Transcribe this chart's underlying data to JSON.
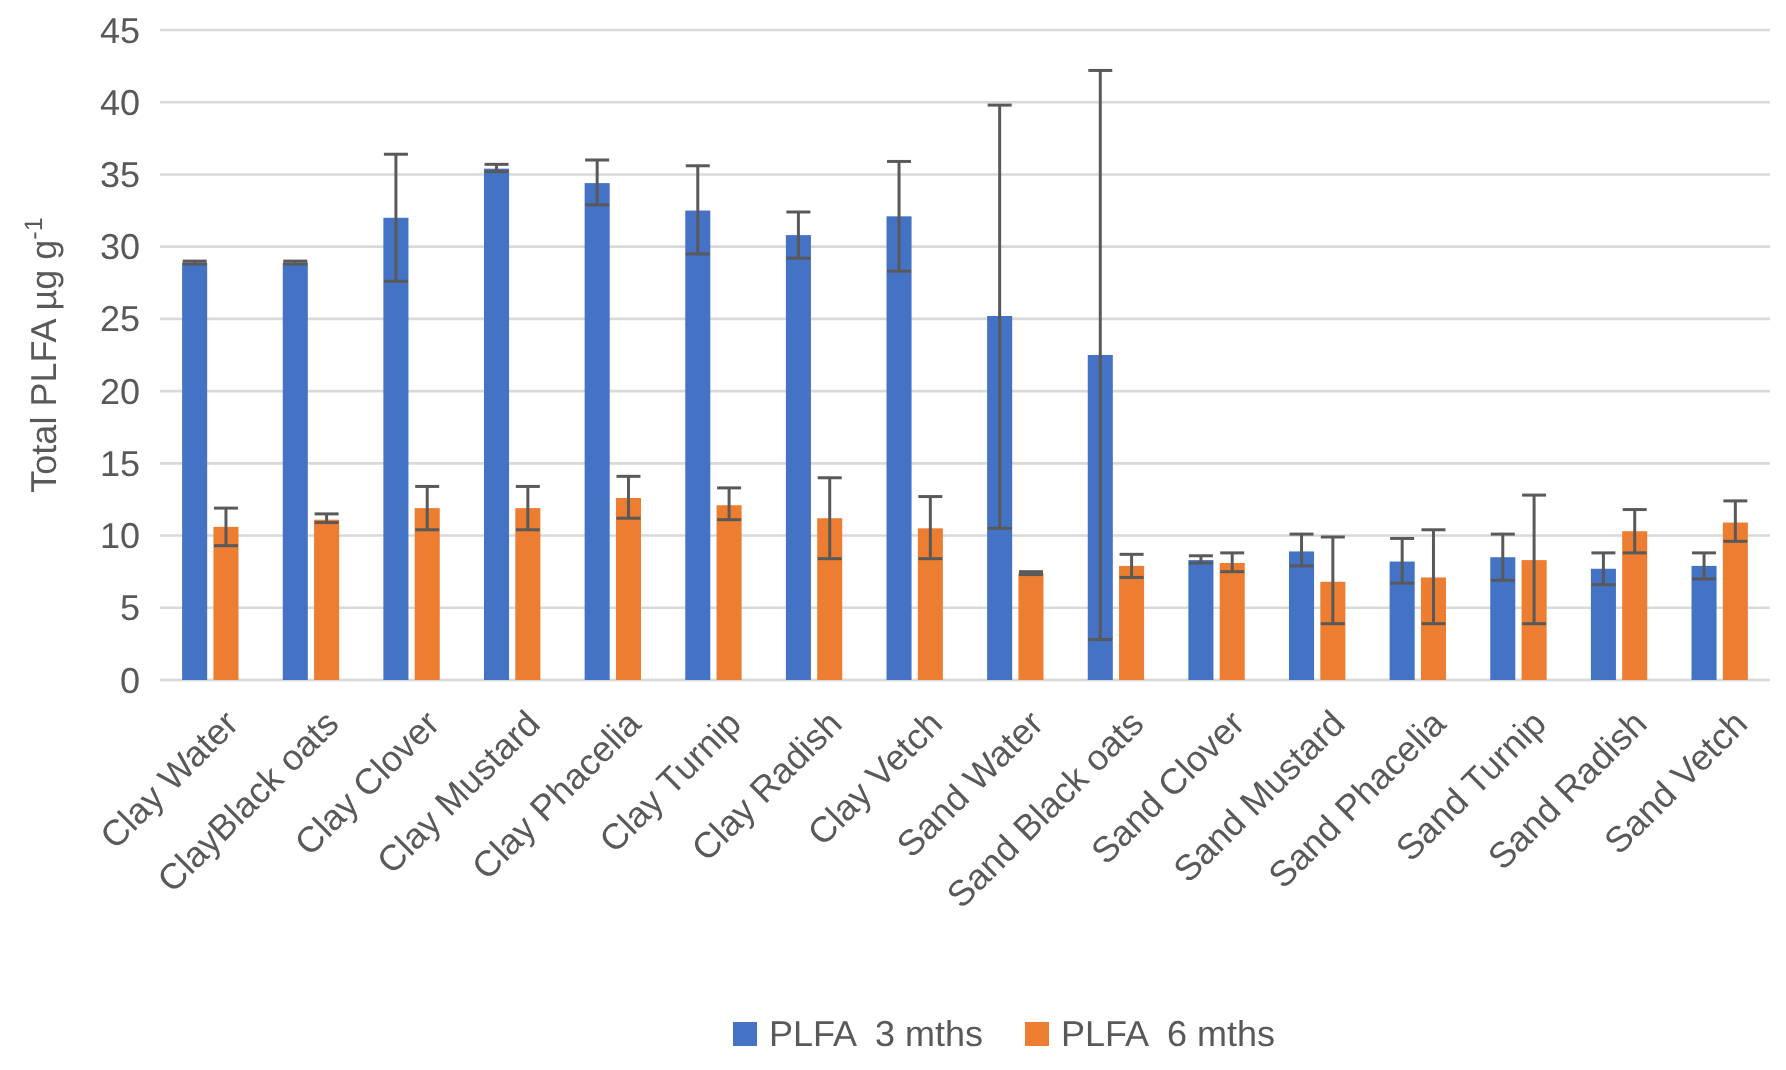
{
  "chart_data": {
    "type": "bar",
    "ylabel": "Total PLFA µg g$^{-1}$",
    "categories": [
      "Clay Water",
      "ClayBlack oats",
      "Clay Clover",
      "Clay Mustard",
      "Clay Phacelia",
      "Clay Turnip",
      "Clay Radish",
      "Clay Vetch",
      "Sand Water",
      "Sand Black oats",
      "Sand Clover",
      "Sand Mustard",
      "Sand Phacelia",
      "Sand Turnip",
      "Sand Radish",
      "Sand Vetch"
    ],
    "series": [
      {
        "name": "PLFA  3 mths",
        "color": "#4472c4",
        "values": [
          28.9,
          28.9,
          32.0,
          35.4,
          34.4,
          32.5,
          30.8,
          32.1,
          25.2,
          22.5,
          8.3,
          8.9,
          8.2,
          8.5,
          7.7,
          7.9
        ],
        "errors": [
          [
            28.8,
            29.0
          ],
          [
            28.8,
            29.0
          ],
          [
            27.6,
            36.4
          ],
          [
            35.2,
            35.7
          ],
          [
            32.9,
            36.0
          ],
          [
            29.5,
            35.6
          ],
          [
            29.2,
            32.4
          ],
          [
            28.3,
            35.9
          ],
          [
            10.5,
            39.8
          ],
          [
            2.8,
            42.2
          ],
          [
            8.1,
            8.6
          ],
          [
            7.9,
            10.1
          ],
          [
            6.7,
            9.8
          ],
          [
            6.9,
            10.1
          ],
          [
            6.6,
            8.8
          ],
          [
            7.0,
            8.8
          ]
        ]
      },
      {
        "name": "PLFA  6 mths",
        "color": "#ed7d31",
        "values": [
          10.6,
          11.1,
          11.9,
          11.9,
          12.6,
          12.1,
          11.2,
          10.5,
          7.4,
          7.9,
          8.1,
          6.8,
          7.1,
          8.3,
          10.3,
          10.9
        ],
        "errors": [
          [
            9.3,
            11.9
          ],
          [
            10.9,
            11.5
          ],
          [
            10.4,
            13.4
          ],
          [
            10.4,
            13.4
          ],
          [
            11.2,
            14.1
          ],
          [
            11.1,
            13.3
          ],
          [
            8.4,
            14.0
          ],
          [
            8.4,
            12.7
          ],
          [
            7.3,
            7.5
          ],
          [
            7.1,
            8.7
          ],
          [
            7.5,
            8.8
          ],
          [
            3.9,
            9.9
          ],
          [
            3.9,
            10.4
          ],
          [
            3.9,
            12.8
          ],
          [
            8.8,
            11.8
          ],
          [
            9.6,
            12.4
          ]
        ]
      }
    ],
    "ylim": [
      0,
      45
    ],
    "yticks": [
      0,
      5,
      10,
      15,
      20,
      25,
      30,
      35,
      40,
      45
    ],
    "grid": "y",
    "legend": "bottom"
  }
}
